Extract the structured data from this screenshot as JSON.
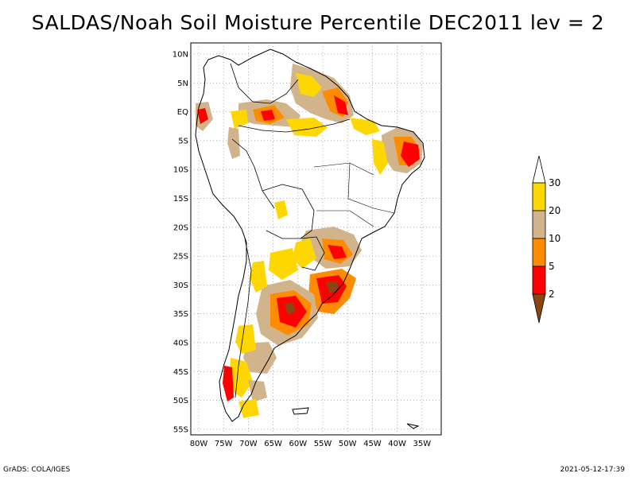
{
  "title": "SALDAS/Noah Soil Moisture Percentile DEC2011 lev = 2",
  "footer": {
    "left": "GrADS: COLA/IGES",
    "right": "2021-05-12-17:39"
  },
  "map": {
    "lat_labels": [
      "10N",
      "5N",
      "EQ",
      "5S",
      "10S",
      "15S",
      "20S",
      "25S",
      "30S",
      "35S",
      "40S",
      "45S",
      "50S",
      "55S"
    ],
    "lon_labels": [
      "80W",
      "75W",
      "70W",
      "65W",
      "60W",
      "55W",
      "50W",
      "45W",
      "40W",
      "35W"
    ],
    "grid": true
  },
  "legend": {
    "labels": [
      "2",
      "5",
      "10",
      "20",
      "30"
    ],
    "colors": [
      "#8b4513",
      "#ff0000",
      "#ff8c00",
      "#d2b48c",
      "#ffd700",
      "#ffffff"
    ]
  }
}
